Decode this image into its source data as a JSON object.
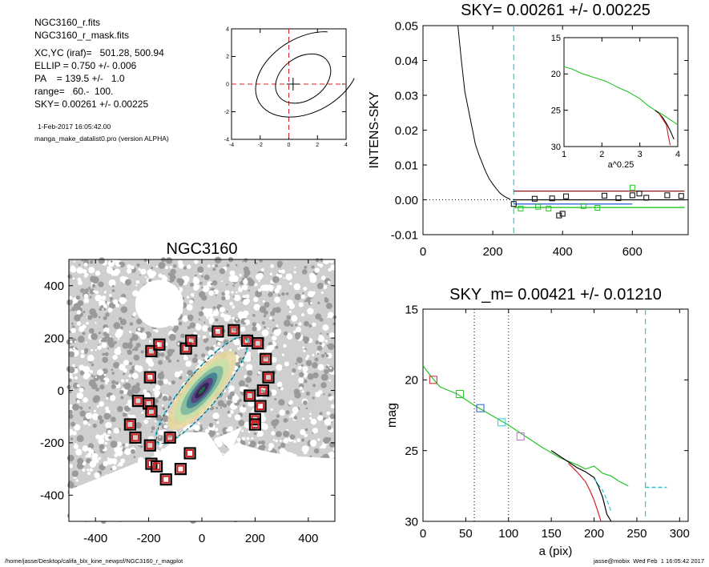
{
  "info": {
    "file": "NGC3160_r.fits",
    "mask": "NGC3160_r_mask.fits",
    "xcyc": "XC,YC (iraf)=   501.28, 500.94",
    "ellip": "ELLIP = 0.750 +/- 0.006",
    "pa": "PA    = 139.5 +/-   1.0",
    "range": "range=   60.-  100.",
    "sky": "SKY= 0.00261 +/- 0.00225",
    "date": "1-Feb-2017 16:05:42.00",
    "program": "manga_make_datalist0.pro (version ALPHA)"
  },
  "footer": {
    "path": "/home/jasse/Desktop/califa_blx_kine_newpsf/NGC3160_r_magplot",
    "host": "jasse@mobix  Wed Feb  1 16:05:42 2017"
  },
  "colors": {
    "red": "#d42020",
    "green": "#22c422",
    "blue": "#1f5fd4",
    "cyan": "#2ec8d8",
    "violet": "#c070d0",
    "darkred": "#8a1a1a"
  },
  "chart_data": [
    {
      "id": "contour",
      "type": "scatter",
      "title": "",
      "xlim": [
        -4,
        4
      ],
      "ylim": [
        -4,
        4
      ],
      "xticks": [
        "-4",
        "-2",
        "0",
        "2",
        "4"
      ],
      "yticks": [
        "4",
        "2",
        "0",
        "-2",
        "-4"
      ],
      "center": [
        0.3,
        0.0
      ],
      "contours": [
        {
          "cx": 1.0,
          "cy": 0.4,
          "rx": 2.1,
          "ry": 1.5,
          "angle_deg": 35
        },
        {
          "cx": 1.3,
          "cy": 0.7,
          "rx": 3.9,
          "ry": 2.6,
          "angle_deg": 30
        }
      ]
    },
    {
      "id": "sky",
      "type": "line",
      "title": "SKY= 0.00261 +/- 0.00225",
      "xlabel": "",
      "ylabel": "INTENS-SKY",
      "xlim": [
        0,
        760
      ],
      "ylim": [
        -0.01,
        0.05
      ],
      "xticks": [
        "0",
        "200",
        "400",
        "600"
      ],
      "yticks": [
        "0.05",
        "0.04",
        "0.03",
        "0.02",
        "0.01",
        "0.00",
        "-0.01"
      ],
      "sky_radius": 260,
      "profile": {
        "x": [
          100,
          110,
          120,
          130,
          140,
          150,
          160,
          170,
          180,
          190,
          200,
          210,
          220,
          230,
          240,
          250
        ],
        "y": [
          0.05,
          0.04,
          0.031,
          0.026,
          0.021,
          0.016,
          0.013,
          0.0105,
          0.008,
          0.006,
          0.0045,
          0.0032,
          0.002,
          0.0012,
          0.0006,
          0.0002
        ]
      },
      "levels": [
        {
          "name": "",
          "color": "red",
          "x": [
            260,
            750
          ],
          "y": 0.0025
        },
        {
          "name": "",
          "color": "black",
          "x": [
            260,
            750
          ],
          "y": 0.0
        },
        {
          "name": "",
          "color": "blue",
          "x": [
            260,
            600
          ],
          "y": -0.0012
        },
        {
          "name": "",
          "color": "green",
          "x": [
            260,
            750
          ],
          "y": -0.0022
        }
      ],
      "markers": {
        "black": [
          [
            260,
            -0.0012
          ],
          [
            320,
            0.0003
          ],
          [
            370,
            0.0004
          ],
          [
            410,
            0.001
          ],
          [
            520,
            0.0012
          ],
          [
            560,
            0.0005
          ],
          [
            600,
            0.0013
          ],
          [
            620,
            0.0018
          ],
          [
            640,
            0.0006
          ],
          [
            700,
            0.0013
          ],
          [
            740,
            0.0011
          ],
          [
            400,
            -0.004
          ],
          [
            390,
            -0.0045
          ]
        ],
        "green": [
          [
            280,
            -0.0025
          ],
          [
            330,
            -0.002
          ],
          [
            360,
            -0.0025
          ],
          [
            460,
            -0.0018
          ],
          [
            500,
            -0.0023
          ],
          [
            600,
            0.0035
          ]
        ]
      },
      "inset": {
        "xlabel": "a^0.25",
        "xlim": [
          1,
          4
        ],
        "ylim": [
          15,
          30
        ],
        "xticks": [
          "1",
          "2",
          "3",
          "4"
        ],
        "yticks": [
          "15",
          "20",
          "25",
          "30"
        ],
        "series": [
          {
            "name": "",
            "color": "green",
            "x": [
              1.0,
              1.2,
              1.5,
              1.8,
              2.1,
              2.4,
              2.7,
              3.0,
              3.2,
              3.4,
              3.6,
              3.8,
              4.0
            ],
            "y": [
              19.0,
              19.3,
              20.0,
              20.5,
              21.0,
              21.8,
              22.5,
              23.4,
              24.3,
              25.0,
              25.6,
              26.3,
              27.0
            ]
          },
          {
            "name": "",
            "color": "black",
            "x": [
              3.4,
              3.5,
              3.6,
              3.7,
              3.8,
              3.9
            ],
            "y": [
              25.0,
              25.4,
              26.0,
              26.8,
              27.8,
              29.0
            ]
          },
          {
            "name": "",
            "color": "red",
            "x": [
              3.5,
              3.6,
              3.7,
              3.75,
              3.8
            ],
            "y": [
              25.4,
              26.2,
              27.0,
              28.5,
              29.8
            ]
          }
        ]
      }
    },
    {
      "id": "image",
      "type": "scatter",
      "title": "NGC3160",
      "xlim": [
        -500,
        500
      ],
      "ylim": [
        -500,
        500
      ],
      "xticks": [
        "-400",
        "-200",
        "0",
        "200",
        "400"
      ],
      "yticks": [
        "400",
        "200",
        "0",
        "-200",
        "-400"
      ],
      "ellipse": {
        "cx": 0,
        "cy": 0,
        "a": 260,
        "b": 65,
        "pa_deg": 50
      },
      "masked_stars": [
        [
          -240,
          -40
        ],
        [
          -200,
          -50
        ],
        [
          -190,
          -80
        ],
        [
          -195,
          50
        ],
        [
          -190,
          150
        ],
        [
          -160,
          175
        ],
        [
          -60,
          160
        ],
        [
          -40,
          190
        ],
        [
          60,
          225
        ],
        [
          120,
          230
        ],
        [
          170,
          190
        ],
        [
          210,
          180
        ],
        [
          240,
          120
        ],
        [
          250,
          50
        ],
        [
          230,
          0
        ],
        [
          180,
          -20
        ],
        [
          220,
          -60
        ],
        [
          200,
          -110
        ],
        [
          200,
          -130
        ],
        [
          -270,
          -130
        ],
        [
          -250,
          -180
        ],
        [
          -195,
          -210
        ],
        [
          -190,
          -280
        ],
        [
          -170,
          -290
        ],
        [
          -120,
          -180
        ],
        [
          -45,
          -240
        ],
        [
          -80,
          -300
        ],
        [
          -135,
          -340
        ]
      ]
    },
    {
      "id": "mag",
      "type": "line",
      "title": "SKY_m=  0.00421 +/- 0.01210",
      "xlabel": "a (pix)",
      "ylabel": "mag",
      "xlim": [
        0,
        310
      ],
      "ylim": [
        15,
        30
      ],
      "xticks": [
        "0",
        "50",
        "100",
        "150",
        "200",
        "250",
        "300"
      ],
      "yticks": [
        "15",
        "20",
        "25",
        "30"
      ],
      "vlines": [
        60,
        100
      ],
      "sky_radius": 260,
      "sky_level": {
        "x": [
          260,
          285
        ],
        "y": 27.6
      },
      "series": [
        {
          "name": "",
          "color": "green",
          "x": [
            0,
            10,
            20,
            40,
            60,
            80,
            100,
            120,
            140,
            160,
            180,
            190,
            200,
            210,
            220,
            230,
            240
          ],
          "y": [
            19.0,
            19.8,
            20.5,
            21.0,
            21.8,
            22.5,
            23.2,
            24.0,
            24.8,
            25.5,
            26.0,
            26.3,
            26.1,
            26.6,
            26.8,
            27.2,
            27.5
          ]
        },
        {
          "name": "",
          "color": "black",
          "x": [
            150,
            160,
            170,
            180,
            190,
            200,
            205,
            210,
            215,
            220
          ],
          "y": [
            25.0,
            25.4,
            25.8,
            26.2,
            26.5,
            26.9,
            27.5,
            28.3,
            29.5,
            30.0
          ]
        },
        {
          "name": "",
          "color": "red",
          "x": [
            170,
            180,
            190,
            195,
            200,
            205,
            208
          ],
          "y": [
            25.9,
            26.5,
            27.2,
            27.8,
            28.5,
            29.4,
            30.0
          ]
        },
        {
          "name": "",
          "color": "cyan",
          "x": [
            200,
            210,
            215,
            220
          ],
          "y": [
            27.0,
            27.8,
            28.5,
            29.3
          ]
        }
      ],
      "markers": [
        {
          "color": "red",
          "x": 12,
          "y": 20.0
        },
        {
          "color": "green",
          "x": 43,
          "y": 21.0
        },
        {
          "color": "blue",
          "x": 67,
          "y": 22.0
        },
        {
          "color": "cyan",
          "x": 92,
          "y": 23.0
        },
        {
          "color": "violet",
          "x": 114,
          "y": 24.0
        }
      ]
    }
  ]
}
